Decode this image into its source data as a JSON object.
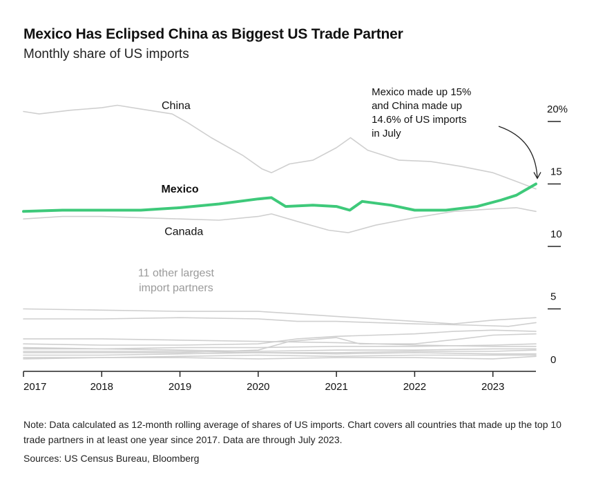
{
  "header": {
    "title": "Mexico Has Eclipsed China as Biggest US Trade Partner",
    "subtitle": "Monthly share of US imports"
  },
  "footer": {
    "note": "Note: Data calculated as 12-month rolling average of shares of US imports. Chart covers all countries that made up the top 10 trade partners in at least one year since 2017. Data are through July 2023.",
    "sources": "Sources: US Census Bureau, Bloomberg"
  },
  "colors": {
    "mexico": "#3ec97a",
    "others": "#cfcfcf",
    "axis": "#222222",
    "text": "#111111"
  },
  "chart_data": {
    "type": "line",
    "title": "Mexico Has Eclipsed China as Biggest US Trade Partner",
    "subtitle": "Monthly share of US imports",
    "x_ticks": [
      "2017",
      "2018",
      "2019",
      "2020",
      "2021",
      "2022",
      "2023"
    ],
    "y_ticks": [
      {
        "value": 0,
        "label": "0"
      },
      {
        "value": 5,
        "label": "5"
      },
      {
        "value": 10,
        "label": "10"
      },
      {
        "value": 15,
        "label": "15"
      },
      {
        "value": 20,
        "label": "20%"
      }
    ],
    "xlim": [
      2017.0,
      2023.55
    ],
    "ylim": [
      0,
      20
    ],
    "grid": false,
    "series": [
      {
        "name": "China",
        "highlight": false,
        "x": [
          2017.0,
          2017.2,
          2017.6,
          2018.0,
          2018.2,
          2018.5,
          2018.9,
          2019.1,
          2019.4,
          2019.8,
          2020.05,
          2020.17,
          2020.4,
          2020.7,
          2021.0,
          2021.18,
          2021.4,
          2021.8,
          2022.2,
          2022.6,
          2023.0,
          2023.3,
          2023.55
        ],
        "y": [
          20.8,
          20.6,
          20.9,
          21.1,
          21.3,
          21.0,
          20.6,
          19.9,
          18.7,
          17.3,
          16.2,
          15.9,
          16.6,
          16.9,
          17.9,
          18.7,
          17.7,
          16.9,
          16.8,
          16.4,
          15.9,
          15.2,
          14.6
        ]
      },
      {
        "name": "Mexico",
        "highlight": true,
        "x": [
          2017.0,
          2017.5,
          2018.0,
          2018.5,
          2019.0,
          2019.5,
          2020.0,
          2020.17,
          2020.35,
          2020.7,
          2021.0,
          2021.17,
          2021.33,
          2021.7,
          2022.0,
          2022.4,
          2022.8,
          2023.1,
          2023.3,
          2023.55
        ],
        "y": [
          12.8,
          12.9,
          12.9,
          12.9,
          13.1,
          13.4,
          13.8,
          13.9,
          13.2,
          13.3,
          13.2,
          12.9,
          13.6,
          13.3,
          12.9,
          12.9,
          13.2,
          13.7,
          14.1,
          15.0
        ]
      },
      {
        "name": "Canada",
        "highlight": false,
        "x": [
          2017.0,
          2017.5,
          2018.0,
          2018.5,
          2019.0,
          2019.5,
          2020.0,
          2020.17,
          2020.5,
          2020.9,
          2021.15,
          2021.5,
          2022.0,
          2022.5,
          2023.0,
          2023.3,
          2023.55
        ],
        "y": [
          12.2,
          12.4,
          12.4,
          12.3,
          12.2,
          12.1,
          12.4,
          12.6,
          12.0,
          11.3,
          11.1,
          11.7,
          12.3,
          12.8,
          13.0,
          13.1,
          12.8
        ]
      },
      {
        "name": "",
        "highlight": false,
        "x": [
          2017.0,
          2018.0,
          2019.0,
          2020.0,
          2020.5,
          2021.0,
          2021.5,
          2022.0,
          2022.5,
          2023.0,
          2023.55
        ],
        "y": [
          5.0,
          4.9,
          4.8,
          4.8,
          4.6,
          4.4,
          4.2,
          4.0,
          3.8,
          4.1,
          4.3
        ]
      },
      {
        "name": "",
        "highlight": false,
        "x": [
          2017.0,
          2018.0,
          2019.0,
          2020.0,
          2020.5,
          2021.0,
          2021.5,
          2022.0,
          2022.7,
          2023.2,
          2023.55
        ],
        "y": [
          4.2,
          4.2,
          4.3,
          4.2,
          4.0,
          4.0,
          3.9,
          3.8,
          3.7,
          3.6,
          3.9
        ]
      },
      {
        "name": "",
        "highlight": false,
        "x": [
          2017.0,
          2018.0,
          2019.0,
          2020.0,
          2020.5,
          2021.0,
          2021.5,
          2022.0,
          2022.5,
          2023.0,
          2023.55
        ],
        "y": [
          2.2,
          2.1,
          2.1,
          2.2,
          2.6,
          2.8,
          2.9,
          3.0,
          3.2,
          3.3,
          3.2
        ]
      },
      {
        "name": "",
        "highlight": false,
        "x": [
          2017.0,
          2018.0,
          2019.0,
          2020.0,
          2020.4,
          2021.0,
          2021.3,
          2022.0,
          2022.6,
          2023.0,
          2023.55
        ],
        "y": [
          1.5,
          1.5,
          1.5,
          1.7,
          2.4,
          2.7,
          2.2,
          2.2,
          2.6,
          2.9,
          3.0
        ]
      },
      {
        "name": "",
        "highlight": false,
        "x": [
          2017.0,
          2018.0,
          2019.0,
          2020.0,
          2021.0,
          2022.0,
          2023.0,
          2023.55
        ],
        "y": [
          2.6,
          2.6,
          2.5,
          2.4,
          2.3,
          2.1,
          2.0,
          2.0
        ]
      },
      {
        "name": "",
        "highlight": false,
        "x": [
          2017.0,
          2018.0,
          2019.0,
          2020.0,
          2021.0,
          2022.0,
          2023.0,
          2023.55
        ],
        "y": [
          1.8,
          1.8,
          1.9,
          1.9,
          2.0,
          2.0,
          2.1,
          2.2
        ]
      },
      {
        "name": "",
        "highlight": false,
        "x": [
          2017.0,
          2018.0,
          2019.0,
          2020.0,
          2021.0,
          2022.0,
          2023.0,
          2023.55
        ],
        "y": [
          1.9,
          1.8,
          1.7,
          1.6,
          1.7,
          1.7,
          1.8,
          1.8
        ]
      },
      {
        "name": "",
        "highlight": false,
        "x": [
          2017.0,
          2018.0,
          2019.0,
          2020.0,
          2021.0,
          2022.0,
          2023.0,
          2023.55
        ],
        "y": [
          1.3,
          1.3,
          1.4,
          1.5,
          1.5,
          1.6,
          1.6,
          1.7
        ]
      },
      {
        "name": "",
        "highlight": false,
        "x": [
          2017.0,
          2018.0,
          2019.0,
          2020.0,
          2021.0,
          2022.0,
          2023.0,
          2023.55
        ],
        "y": [
          1.6,
          1.6,
          1.6,
          1.5,
          1.4,
          1.5,
          1.4,
          1.4
        ]
      },
      {
        "name": "",
        "highlight": false,
        "x": [
          2017.0,
          2018.0,
          2019.0,
          2020.0,
          2021.0,
          2022.0,
          2023.0,
          2023.55
        ],
        "y": [
          1.1,
          1.1,
          1.2,
          1.3,
          1.2,
          1.3,
          1.3,
          1.3
        ]
      },
      {
        "name": "",
        "highlight": false,
        "x": [
          2017.0,
          2018.0,
          2019.0,
          2020.0,
          2021.0,
          2022.0,
          2023.0,
          2023.55
        ],
        "y": [
          1.0,
          1.1,
          1.1,
          1.0,
          1.1,
          1.1,
          1.0,
          1.2
        ]
      }
    ],
    "labels": [
      {
        "text": "China",
        "x": 2018.95,
        "y": 21.0,
        "bold": false,
        "muted": false
      },
      {
        "text": "Mexico",
        "x": 2019.0,
        "y": 14.3,
        "bold": true,
        "muted": false
      },
      {
        "text": "Canada",
        "x": 2019.05,
        "y": 10.9,
        "bold": false,
        "muted": false
      },
      {
        "text": "11 other largest",
        "x": 2018.95,
        "y": 7.6,
        "bold": false,
        "muted": true
      },
      {
        "text": "import partners",
        "x": 2018.95,
        "y": 6.4,
        "bold": false,
        "muted": true
      }
    ],
    "annotation": {
      "lines": [
        "Mexico made up 15%",
        "and China made up",
        "14.6% of US imports",
        "in July"
      ],
      "x": 2021.45,
      "y": 22.1
    }
  }
}
